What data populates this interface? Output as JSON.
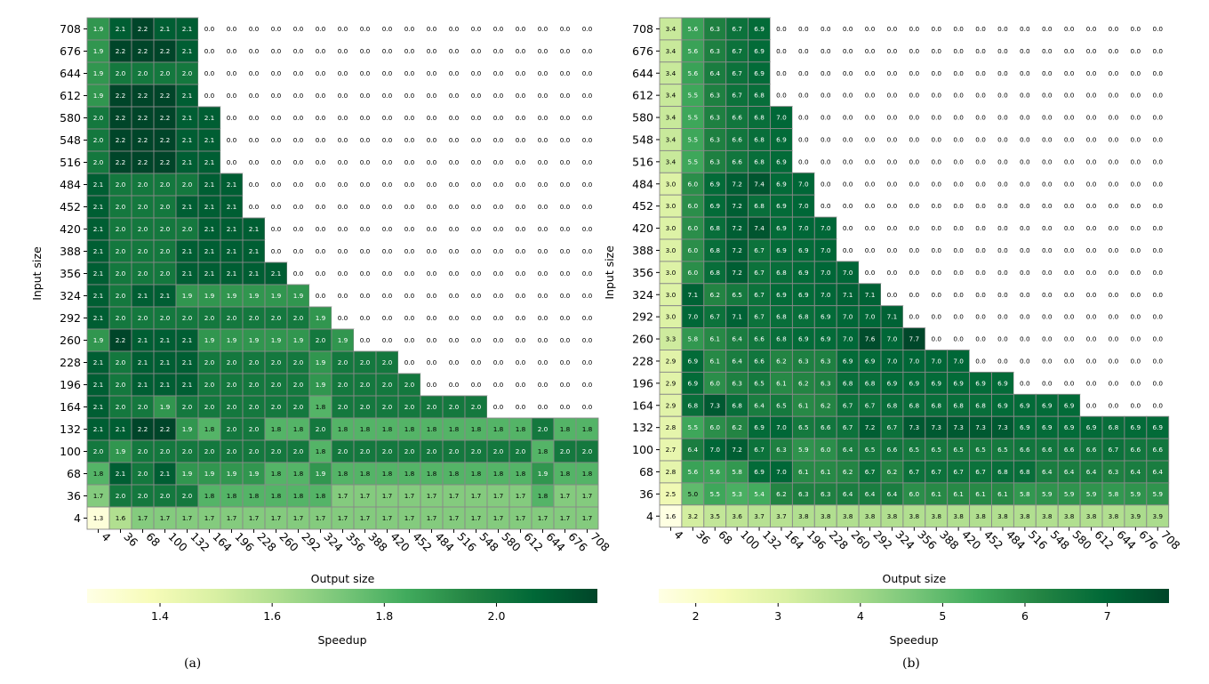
{
  "chart_data": [
    {
      "type": "heatmap",
      "title": "",
      "xlabel": "Output size",
      "ylabel": "Input size",
      "x": [
        4,
        36,
        68,
        100,
        132,
        164,
        196,
        228,
        260,
        292,
        324,
        356,
        388,
        420,
        452,
        484,
        516,
        548,
        580,
        612,
        644,
        676,
        708
      ],
      "y": [
        708,
        676,
        644,
        612,
        580,
        548,
        516,
        484,
        452,
        420,
        388,
        356,
        324,
        292,
        260,
        228,
        196,
        164,
        132,
        100,
        68,
        36,
        4
      ],
      "values": [
        [
          1.9,
          2.1,
          2.2,
          2.1,
          2.1,
          0,
          0,
          0,
          0,
          0,
          0,
          0,
          0,
          0,
          0,
          0,
          0,
          0,
          0,
          0,
          0,
          0,
          0
        ],
        [
          1.9,
          2.2,
          2.2,
          2.2,
          2.1,
          0,
          0,
          0,
          0,
          0,
          0,
          0,
          0,
          0,
          0,
          0,
          0,
          0,
          0,
          0,
          0,
          0,
          0
        ],
        [
          1.9,
          2.0,
          2.0,
          2.0,
          2.0,
          0,
          0,
          0,
          0,
          0,
          0,
          0,
          0,
          0,
          0,
          0,
          0,
          0,
          0,
          0,
          0,
          0,
          0
        ],
        [
          1.9,
          2.2,
          2.2,
          2.2,
          2.1,
          0,
          0,
          0,
          0,
          0,
          0,
          0,
          0,
          0,
          0,
          0,
          0,
          0,
          0,
          0,
          0,
          0,
          0
        ],
        [
          2.0,
          2.2,
          2.2,
          2.2,
          2.1,
          2.1,
          0,
          0,
          0,
          0,
          0,
          0,
          0,
          0,
          0,
          0,
          0,
          0,
          0,
          0,
          0,
          0,
          0
        ],
        [
          2.0,
          2.2,
          2.2,
          2.2,
          2.1,
          2.1,
          0,
          0,
          0,
          0,
          0,
          0,
          0,
          0,
          0,
          0,
          0,
          0,
          0,
          0,
          0,
          0,
          0
        ],
        [
          2.0,
          2.2,
          2.2,
          2.2,
          2.1,
          2.1,
          0,
          0,
          0,
          0,
          0,
          0,
          0,
          0,
          0,
          0,
          0,
          0,
          0,
          0,
          0,
          0,
          0
        ],
        [
          2.1,
          2.0,
          2.0,
          2.0,
          2.0,
          2.1,
          2.1,
          0,
          0,
          0,
          0,
          0,
          0,
          0,
          0,
          0,
          0,
          0,
          0,
          0,
          0,
          0,
          0
        ],
        [
          2.1,
          2.0,
          2.0,
          2.0,
          2.1,
          2.1,
          2.1,
          0,
          0,
          0,
          0,
          0,
          0,
          0,
          0,
          0,
          0,
          0,
          0,
          0,
          0,
          0,
          0
        ],
        [
          2.1,
          2.0,
          2.0,
          2.0,
          2.0,
          2.1,
          2.1,
          2.1,
          0,
          0,
          0,
          0,
          0,
          0,
          0,
          0,
          0,
          0,
          0,
          0,
          0,
          0,
          0
        ],
        [
          2.1,
          2.0,
          2.0,
          2.0,
          2.1,
          2.1,
          2.1,
          2.1,
          0,
          0,
          0,
          0,
          0,
          0,
          0,
          0,
          0,
          0,
          0,
          0,
          0,
          0,
          0
        ],
        [
          2.1,
          2.0,
          2.0,
          2.0,
          2.1,
          2.1,
          2.1,
          2.1,
          2.1,
          0,
          0,
          0,
          0,
          0,
          0,
          0,
          0,
          0,
          0,
          0,
          0,
          0,
          0
        ],
        [
          2.1,
          2.0,
          2.1,
          2.1,
          1.9,
          1.9,
          1.9,
          1.9,
          1.9,
          1.9,
          0,
          0,
          0,
          0,
          0,
          0,
          0,
          0,
          0,
          0,
          0,
          0,
          0
        ],
        [
          2.1,
          2.0,
          2.0,
          2.0,
          2.0,
          2.0,
          2.0,
          2.0,
          2.0,
          2.0,
          1.9,
          0,
          0,
          0,
          0,
          0,
          0,
          0,
          0,
          0,
          0,
          0,
          0
        ],
        [
          1.9,
          2.2,
          2.1,
          2.1,
          2.1,
          1.9,
          1.9,
          1.9,
          1.9,
          1.9,
          2.0,
          1.9,
          0,
          0,
          0,
          0,
          0,
          0,
          0,
          0,
          0,
          0,
          0
        ],
        [
          2.1,
          2.0,
          2.1,
          2.1,
          2.1,
          2.0,
          2.0,
          2.0,
          2.0,
          2.0,
          1.9,
          2.0,
          2.0,
          2.0,
          0,
          0,
          0,
          0,
          0,
          0,
          0,
          0,
          0
        ],
        [
          2.1,
          2.0,
          2.1,
          2.1,
          2.1,
          2.0,
          2.0,
          2.0,
          2.0,
          2.0,
          1.9,
          2.0,
          2.0,
          2.0,
          2.0,
          0,
          0,
          0,
          0,
          0,
          0,
          0,
          0
        ],
        [
          2.1,
          2.0,
          2.0,
          1.9,
          2.0,
          2.0,
          2.0,
          2.0,
          2.0,
          2.0,
          1.8,
          2.0,
          2.0,
          2.0,
          2.0,
          2.0,
          2.0,
          2.0,
          0,
          0,
          0,
          0,
          0
        ],
        [
          2.1,
          2.1,
          2.2,
          2.2,
          1.9,
          1.8,
          2.0,
          2.0,
          1.8,
          1.8,
          2.0,
          1.8,
          1.8,
          1.8,
          1.8,
          1.8,
          1.8,
          1.8,
          1.8,
          1.8,
          2.0,
          1.8,
          1.8
        ],
        [
          2.0,
          1.9,
          2.0,
          2.0,
          2.0,
          2.0,
          2.0,
          2.0,
          2.0,
          2.0,
          1.8,
          2.0,
          2.0,
          2.0,
          2.0,
          2.0,
          2.0,
          2.0,
          2.0,
          2.0,
          1.8,
          2.0,
          2.0
        ],
        [
          1.8,
          2.1,
          2.0,
          2.1,
          1.9,
          1.9,
          1.9,
          1.9,
          1.8,
          1.8,
          1.9,
          1.8,
          1.8,
          1.8,
          1.8,
          1.8,
          1.8,
          1.8,
          1.8,
          1.8,
          1.9,
          1.8,
          1.8
        ],
        [
          1.7,
          2.0,
          2.0,
          2.0,
          2.0,
          1.8,
          1.8,
          1.8,
          1.8,
          1.8,
          1.8,
          1.7,
          1.7,
          1.7,
          1.7,
          1.7,
          1.7,
          1.7,
          1.7,
          1.7,
          1.8,
          1.7,
          1.7
        ],
        [
          1.3,
          1.6,
          1.7,
          1.7,
          1.7,
          1.7,
          1.7,
          1.7,
          1.7,
          1.7,
          1.7,
          1.7,
          1.7,
          1.7,
          1.7,
          1.7,
          1.7,
          1.7,
          1.7,
          1.7,
          1.7,
          1.7,
          1.7
        ]
      ],
      "colorbar": {
        "label": "Speedup",
        "range": [
          1.27,
          2.18
        ],
        "ticks": [
          "1.4",
          "1.6",
          "1.8",
          "2.0"
        ],
        "tick_values": [
          1.4,
          1.6,
          1.8,
          2.0
        ]
      },
      "caption": "(a)"
    },
    {
      "type": "heatmap",
      "title": "",
      "xlabel": "Output size",
      "ylabel": "Input size",
      "x": [
        4,
        36,
        68,
        100,
        132,
        164,
        196,
        228,
        260,
        292,
        324,
        356,
        388,
        420,
        452,
        484,
        516,
        548,
        580,
        612,
        644,
        676,
        708
      ],
      "y": [
        708,
        676,
        644,
        612,
        580,
        548,
        516,
        484,
        452,
        420,
        388,
        356,
        324,
        292,
        260,
        228,
        196,
        164,
        132,
        100,
        68,
        36,
        4
      ],
      "values": [
        [
          3.4,
          5.6,
          6.3,
          6.7,
          6.9,
          0,
          0,
          0,
          0,
          0,
          0,
          0,
          0,
          0,
          0,
          0,
          0,
          0,
          0,
          0,
          0,
          0,
          0
        ],
        [
          3.4,
          5.6,
          6.3,
          6.7,
          6.9,
          0,
          0,
          0,
          0,
          0,
          0,
          0,
          0,
          0,
          0,
          0,
          0,
          0,
          0,
          0,
          0,
          0,
          0
        ],
        [
          3.4,
          5.6,
          6.4,
          6.7,
          6.9,
          0,
          0,
          0,
          0,
          0,
          0,
          0,
          0,
          0,
          0,
          0,
          0,
          0,
          0,
          0,
          0,
          0,
          0
        ],
        [
          3.4,
          5.5,
          6.3,
          6.7,
          6.8,
          0,
          0,
          0,
          0,
          0,
          0,
          0,
          0,
          0,
          0,
          0,
          0,
          0,
          0,
          0,
          0,
          0,
          0
        ],
        [
          3.4,
          5.5,
          6.3,
          6.6,
          6.8,
          7.0,
          0,
          0,
          0,
          0,
          0,
          0,
          0,
          0,
          0,
          0,
          0,
          0,
          0,
          0,
          0,
          0,
          0
        ],
        [
          3.4,
          5.5,
          6.3,
          6.6,
          6.8,
          6.9,
          0,
          0,
          0,
          0,
          0,
          0,
          0,
          0,
          0,
          0,
          0,
          0,
          0,
          0,
          0,
          0,
          0
        ],
        [
          3.4,
          5.5,
          6.3,
          6.6,
          6.8,
          6.9,
          0,
          0,
          0,
          0,
          0,
          0,
          0,
          0,
          0,
          0,
          0,
          0,
          0,
          0,
          0,
          0,
          0
        ],
        [
          3.0,
          6.0,
          6.9,
          7.2,
          7.4,
          6.9,
          7.0,
          0,
          0,
          0,
          0,
          0,
          0,
          0,
          0,
          0,
          0,
          0,
          0,
          0,
          0,
          0,
          0
        ],
        [
          3.0,
          6.0,
          6.9,
          7.2,
          6.8,
          6.9,
          7.0,
          0,
          0,
          0,
          0,
          0,
          0,
          0,
          0,
          0,
          0,
          0,
          0,
          0,
          0,
          0,
          0
        ],
        [
          3.0,
          6.0,
          6.8,
          7.2,
          7.4,
          6.9,
          7.0,
          7.0,
          0,
          0,
          0,
          0,
          0,
          0,
          0,
          0,
          0,
          0,
          0,
          0,
          0,
          0,
          0
        ],
        [
          3.0,
          6.0,
          6.8,
          7.2,
          6.7,
          6.9,
          6.9,
          7.0,
          0,
          0,
          0,
          0,
          0,
          0,
          0,
          0,
          0,
          0,
          0,
          0,
          0,
          0,
          0
        ],
        [
          3.0,
          6.0,
          6.8,
          7.2,
          6.7,
          6.8,
          6.9,
          7.0,
          7.0,
          0,
          0,
          0,
          0,
          0,
          0,
          0,
          0,
          0,
          0,
          0,
          0,
          0,
          0
        ],
        [
          3.0,
          7.1,
          6.2,
          6.5,
          6.7,
          6.9,
          6.9,
          7.0,
          7.1,
          7.1,
          0,
          0,
          0,
          0,
          0,
          0,
          0,
          0,
          0,
          0,
          0,
          0,
          0
        ],
        [
          3.0,
          7.0,
          6.7,
          7.1,
          6.7,
          6.8,
          6.8,
          6.9,
          7.0,
          7.0,
          7.1,
          0,
          0,
          0,
          0,
          0,
          0,
          0,
          0,
          0,
          0,
          0,
          0
        ],
        [
          3.3,
          5.8,
          6.1,
          6.4,
          6.6,
          6.8,
          6.9,
          6.9,
          7.0,
          7.6,
          7.0,
          7.7,
          0,
          0,
          0,
          0,
          0,
          0,
          0,
          0,
          0,
          0,
          0
        ],
        [
          2.9,
          6.9,
          6.1,
          6.4,
          6.6,
          6.2,
          6.3,
          6.3,
          6.9,
          6.9,
          7.0,
          7.0,
          7.0,
          7.0,
          0,
          0,
          0,
          0,
          0,
          0,
          0,
          0,
          0
        ],
        [
          2.9,
          6.9,
          6.0,
          6.3,
          6.5,
          6.1,
          6.2,
          6.3,
          6.8,
          6.8,
          6.9,
          6.9,
          6.9,
          6.9,
          6.9,
          6.9,
          0,
          0,
          0,
          0,
          0,
          0,
          0
        ],
        [
          2.9,
          6.8,
          7.3,
          6.8,
          6.4,
          6.5,
          6.1,
          6.2,
          6.7,
          6.7,
          6.8,
          6.8,
          6.8,
          6.8,
          6.8,
          6.9,
          6.9,
          6.9,
          6.9,
          0,
          0,
          0,
          0
        ],
        [
          2.8,
          5.5,
          6.0,
          6.2,
          6.9,
          7.0,
          6.5,
          6.6,
          6.7,
          7.2,
          6.7,
          7.3,
          7.3,
          7.3,
          7.3,
          7.3,
          6.9,
          6.9,
          6.9,
          6.9,
          6.8,
          6.9,
          6.9
        ],
        [
          2.7,
          6.4,
          7.0,
          7.2,
          6.7,
          6.3,
          5.9,
          6.0,
          6.4,
          6.5,
          6.6,
          6.5,
          6.5,
          6.5,
          6.5,
          6.5,
          6.6,
          6.6,
          6.6,
          6.6,
          6.7,
          6.6,
          6.6
        ],
        [
          2.8,
          5.6,
          5.6,
          5.8,
          6.9,
          7.0,
          6.1,
          6.1,
          6.2,
          6.7,
          6.2,
          6.7,
          6.7,
          6.7,
          6.7,
          6.8,
          6.8,
          6.4,
          6.4,
          6.4,
          6.3,
          6.4,
          6.4
        ],
        [
          2.5,
          5.0,
          5.5,
          5.3,
          5.4,
          6.2,
          6.3,
          6.3,
          6.4,
          6.4,
          6.4,
          6.0,
          6.1,
          6.1,
          6.1,
          6.1,
          5.8,
          5.9,
          5.9,
          5.9,
          5.8,
          5.9,
          5.9
        ],
        [
          1.6,
          3.2,
          3.5,
          3.6,
          3.7,
          3.7,
          3.8,
          3.8,
          3.8,
          3.8,
          3.8,
          3.8,
          3.8,
          3.8,
          3.8,
          3.8,
          3.8,
          3.8,
          3.8,
          3.8,
          3.8,
          3.9,
          3.9
        ]
      ],
      "colorbar": {
        "label": "Speedup",
        "range": [
          1.55,
          7.75
        ],
        "ticks": [
          "2",
          "3",
          "4",
          "5",
          "6",
          "7"
        ],
        "tick_values": [
          2,
          3,
          4,
          5,
          6,
          7
        ]
      },
      "caption": "(b)"
    }
  ],
  "colormap": [
    "#ffffe5",
    "#f7fcb9",
    "#d9f0a3",
    "#addd8e",
    "#78c679",
    "#41ab5d",
    "#238443",
    "#006837",
    "#004529"
  ],
  "grid_color": "#888888",
  "zero_color": "#ffffff"
}
